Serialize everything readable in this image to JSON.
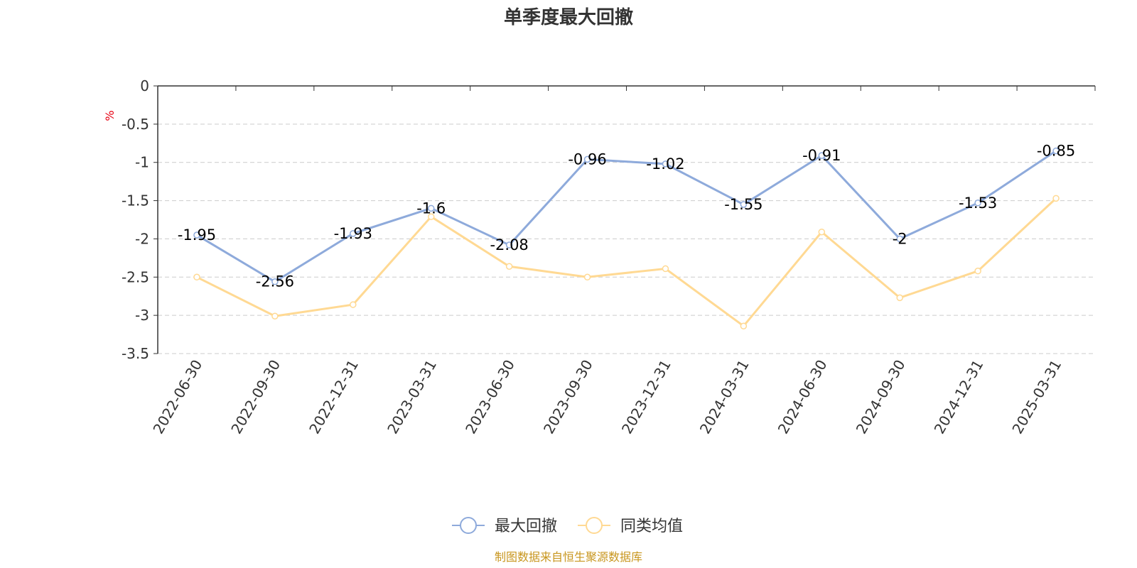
{
  "chart_data": {
    "type": "line",
    "title": "单季度最大回撤",
    "ylabel": "%",
    "xlabel": "",
    "ylim": [
      -3.5,
      0
    ],
    "yticks": [
      0,
      -0.5,
      -1,
      -1.5,
      -2,
      -2.5,
      -3,
      -3.5
    ],
    "ytick_labels": [
      "0",
      "-0.5",
      "-1",
      "-1.5",
      "-2",
      "-2.5",
      "-3",
      "-3.5"
    ],
    "categories": [
      "2022-06-30",
      "2022-09-30",
      "2022-12-31",
      "2023-03-31",
      "2023-06-30",
      "2023-09-30",
      "2023-12-31",
      "2024-03-31",
      "2024-06-30",
      "2024-09-30",
      "2024-12-31",
      "2025-03-31"
    ],
    "grid": "horizontal dashed",
    "legend_position": "bottom-center",
    "series": [
      {
        "name": "最大回撤",
        "color": "#8eaadb",
        "show_labels": true,
        "values": [
          -1.95,
          -2.56,
          -1.93,
          -1.6,
          -2.08,
          -0.96,
          -1.02,
          -1.55,
          -0.91,
          -2,
          -1.53,
          -0.85
        ],
        "labels": [
          "-1.95",
          "-2.56",
          "-1.93",
          "-1.6",
          "-2.08",
          "-0.96",
          "-1.02",
          "-1.55",
          "-0.91",
          "-2",
          "-1.53",
          "-0.85"
        ]
      },
      {
        "name": "同类均值",
        "color": "#ffd993",
        "show_labels": false,
        "values": [
          -2.5,
          -3.01,
          -2.86,
          -1.71,
          -2.36,
          -2.5,
          -2.39,
          -3.14,
          -1.91,
          -2.77,
          -2.42,
          -1.47
        ]
      }
    ]
  },
  "source_note": "制图数据来自恒生聚源数据库"
}
